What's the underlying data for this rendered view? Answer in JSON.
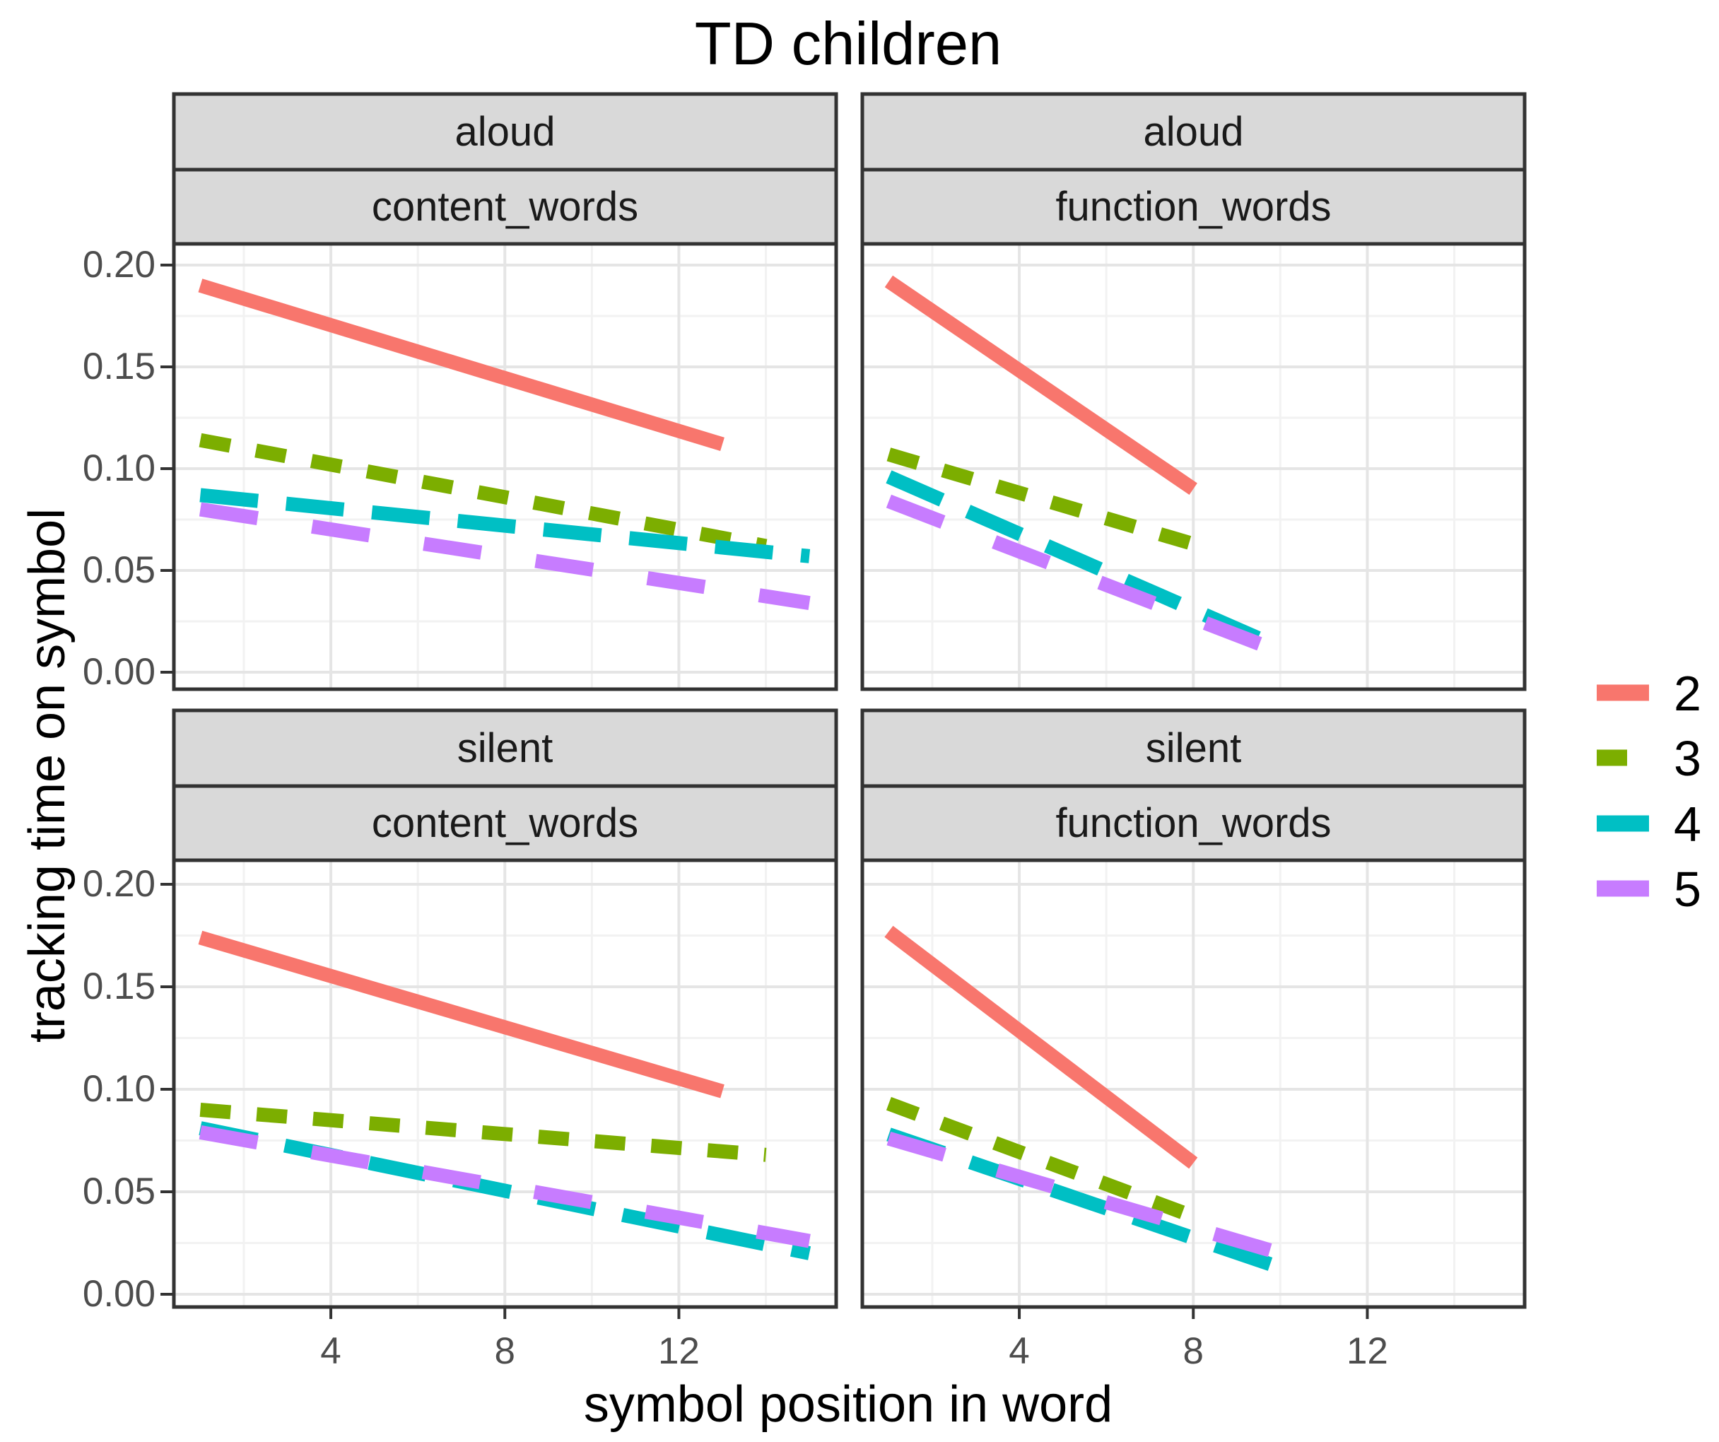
{
  "title": "TD children",
  "axis": {
    "x_title": "symbol position in word",
    "y_title": "tracking time on symbol",
    "x_tick_labels": [
      "4",
      "8",
      "12"
    ],
    "y_tick_labels": [
      "0.20",
      "0.15",
      "0.10",
      "0.05",
      "0.00"
    ]
  },
  "facets": [
    {
      "condition": "aloud",
      "word_type": "content_words"
    },
    {
      "condition": "aloud",
      "word_type": "function_words"
    },
    {
      "condition": "silent",
      "word_type": "content_words"
    },
    {
      "condition": "silent",
      "word_type": "function_words"
    }
  ],
  "legend": {
    "items": [
      {
        "label": "2",
        "color": "#F8766D",
        "dash": []
      },
      {
        "label": "3",
        "color": "#7CAE00",
        "dash": [
          43,
          37
        ]
      },
      {
        "label": "4",
        "color": "#00BFC4",
        "dash": [
          82,
          40
        ]
      },
      {
        "label": "5",
        "color": "#C77CFF",
        "dash": [
          82,
          78
        ]
      }
    ]
  },
  "colors": {
    "salmon": "#F8766D",
    "green": "#7CAE00",
    "teal": "#00BFC4",
    "purple": "#C77CFF",
    "strip_fill": "#D9D9D9",
    "panel_border": "#333333",
    "grid_major": "#E5E5E5",
    "grid_minor": "#F2F2F2",
    "tick": "#333333",
    "tick_label": "#4D4D4D"
  },
  "chart_data": {
    "type": "line",
    "title": "TD children",
    "xlabel": "symbol position in word",
    "ylabel": "tracking time on symbol",
    "xlim": [
      1,
      15
    ],
    "ylim": [
      0,
      0.2
    ],
    "x_ticks": [
      4,
      8,
      12
    ],
    "x_minor_ticks": [
      2,
      6,
      10,
      14
    ],
    "y_ticks": [
      0.2,
      0.15,
      0.1,
      0.05,
      0.0
    ],
    "y_minor_ticks": [
      0.175,
      0.125,
      0.075,
      0.025
    ],
    "grid": true,
    "legend_title": "",
    "legend_position": "right",
    "legend_labels": [
      "2",
      "3",
      "4",
      "5"
    ],
    "facets": [
      {
        "condition": "aloud",
        "word_type": "content_words",
        "series": [
          {
            "length": "2",
            "x": [
              1,
              13
            ],
            "y": [
              0.19,
              0.112
            ]
          },
          {
            "length": "3",
            "x": [
              1,
              14
            ],
            "y": [
              0.114,
              0.062
            ]
          },
          {
            "length": "4",
            "x": [
              1,
              15
            ],
            "y": [
              0.087,
              0.057
            ]
          },
          {
            "length": "5",
            "x": [
              1,
              15
            ],
            "y": [
              0.08,
              0.034
            ]
          }
        ]
      },
      {
        "condition": "aloud",
        "word_type": "function_words",
        "series": [
          {
            "length": "2",
            "x": [
              1,
              8
            ],
            "y": [
              0.192,
              0.09
            ]
          },
          {
            "length": "3",
            "x": [
              1,
              8
            ],
            "y": [
              0.107,
              0.063
            ]
          },
          {
            "length": "4",
            "x": [
              1,
              10
            ],
            "y": [
              0.096,
              0.012
            ]
          },
          {
            "length": "5",
            "x": [
              1,
              10
            ],
            "y": [
              0.084,
              0.01
            ]
          }
        ]
      },
      {
        "condition": "silent",
        "word_type": "content_words",
        "series": [
          {
            "length": "2",
            "x": [
              1,
              13
            ],
            "y": [
              0.174,
              0.099
            ]
          },
          {
            "length": "3",
            "x": [
              1,
              14
            ],
            "y": [
              0.09,
              0.068
            ]
          },
          {
            "length": "4",
            "x": [
              1,
              15
            ],
            "y": [
              0.081,
              0.02
            ]
          },
          {
            "length": "5",
            "x": [
              1,
              15
            ],
            "y": [
              0.079,
              0.026
            ]
          }
        ]
      },
      {
        "condition": "silent",
        "word_type": "function_words",
        "series": [
          {
            "length": "2",
            "x": [
              1,
              8
            ],
            "y": [
              0.177,
              0.064
            ]
          },
          {
            "length": "3",
            "x": [
              1,
              8
            ],
            "y": [
              0.093,
              0.038
            ]
          },
          {
            "length": "4",
            "x": [
              1,
              10
            ],
            "y": [
              0.078,
              0.013
            ]
          },
          {
            "length": "5",
            "x": [
              1,
              10
            ],
            "y": [
              0.076,
              0.02
            ]
          }
        ]
      }
    ]
  }
}
